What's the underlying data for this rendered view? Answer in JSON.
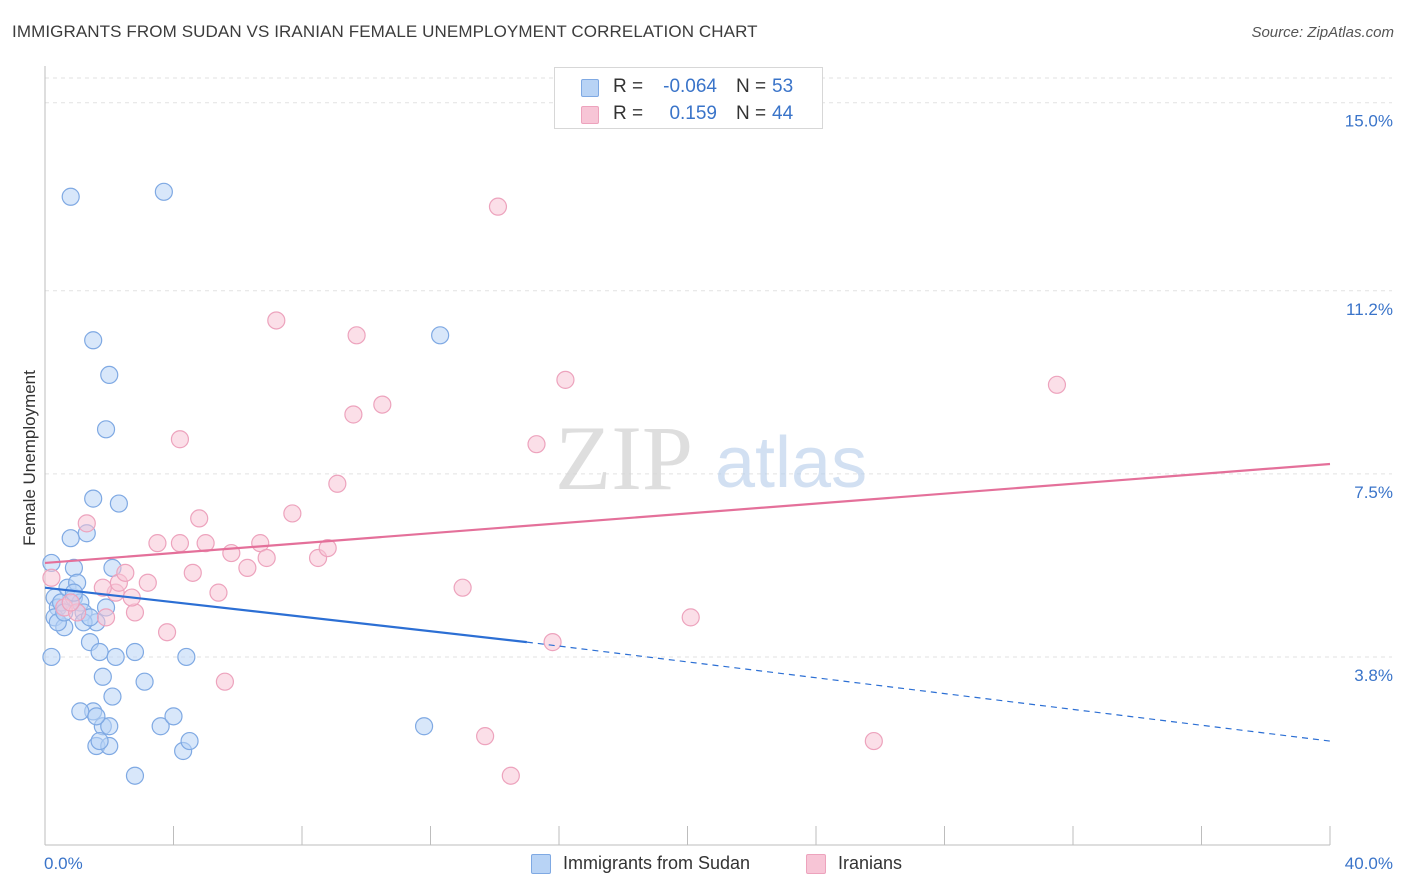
{
  "header": {
    "title": "IMMIGRANTS FROM SUDAN VS IRANIAN FEMALE UNEMPLOYMENT CORRELATION CHART",
    "source": "Source: ZipAtlas.com"
  },
  "watermark": {
    "zip": "ZIP",
    "atlas": "atlas"
  },
  "legend_top": {
    "rows": [
      {
        "r_label": "R =",
        "r_value": "-0.064",
        "n_label": "N =",
        "n_value": "53"
      },
      {
        "r_label": "R =",
        "r_value": "0.159",
        "n_label": "N =",
        "n_value": "44"
      }
    ]
  },
  "legend_bottom": {
    "items": [
      {
        "label": "Immigrants from Sudan"
      },
      {
        "label": "Iranians"
      }
    ]
  },
  "colors": {
    "blue_fill": "#b8d3f5",
    "blue_stroke": "#7fa9e3",
    "blue_line": "#2c6fd4",
    "pink_fill": "#f7c5d6",
    "pink_stroke": "#eda3bd",
    "pink_line": "#e4709a",
    "axis_text": "#3a74c9",
    "grid": "#e2e2e2"
  },
  "chart_data": {
    "type": "scatter",
    "title": "IMMIGRANTS FROM SUDAN VS IRANIAN FEMALE UNEMPLOYMENT CORRELATION CHART",
    "xlabel": "",
    "ylabel": "Female Unemployment",
    "xlim": [
      0,
      40
    ],
    "ylim": [
      0,
      15.5
    ],
    "x_tick_labels": [
      "0.0%",
      "40.0%"
    ],
    "y_ticks": [
      3.8,
      7.5,
      11.2,
      15.0
    ],
    "y_tick_labels": [
      "3.8%",
      "7.5%",
      "11.2%",
      "15.0%"
    ],
    "grid": true,
    "legend_position": "top-center",
    "series": [
      {
        "name": "Immigrants from Sudan",
        "points": [
          [
            0.2,
            5.7
          ],
          [
            0.3,
            5.0
          ],
          [
            0.4,
            4.8
          ],
          [
            0.3,
            4.6
          ],
          [
            0.5,
            4.9
          ],
          [
            0.6,
            4.4
          ],
          [
            0.7,
            5.2
          ],
          [
            0.8,
            6.2
          ],
          [
            0.9,
            5.0
          ],
          [
            0.8,
            13.1
          ],
          [
            0.9,
            5.6
          ],
          [
            1.0,
            5.3
          ],
          [
            1.1,
            4.9
          ],
          [
            1.2,
            4.7
          ],
          [
            1.3,
            6.3
          ],
          [
            1.4,
            4.1
          ],
          [
            1.5,
            7.0
          ],
          [
            1.5,
            10.2
          ],
          [
            1.6,
            4.5
          ],
          [
            1.7,
            3.9
          ],
          [
            1.8,
            3.4
          ],
          [
            1.9,
            8.4
          ],
          [
            2.0,
            9.5
          ],
          [
            2.1,
            5.6
          ],
          [
            2.2,
            3.8
          ],
          [
            1.5,
            2.7
          ],
          [
            1.8,
            2.4
          ],
          [
            2.0,
            2.4
          ],
          [
            2.3,
            6.9
          ],
          [
            1.6,
            2.0
          ],
          [
            2.0,
            2.0
          ],
          [
            2.1,
            3.0
          ],
          [
            2.8,
            3.9
          ],
          [
            3.1,
            3.3
          ],
          [
            3.6,
            2.4
          ],
          [
            2.8,
            1.4
          ],
          [
            3.7,
            13.2
          ],
          [
            4.4,
            3.8
          ],
          [
            4.3,
            1.9
          ],
          [
            4.5,
            2.1
          ],
          [
            4.0,
            2.6
          ],
          [
            1.1,
            2.7
          ],
          [
            1.6,
            2.6
          ],
          [
            1.7,
            2.1
          ],
          [
            0.2,
            3.8
          ],
          [
            0.4,
            4.5
          ],
          [
            0.6,
            4.7
          ],
          [
            1.2,
            4.5
          ],
          [
            1.4,
            4.6
          ],
          [
            0.9,
            5.1
          ],
          [
            1.9,
            4.8
          ],
          [
            12.3,
            10.3
          ],
          [
            11.8,
            2.4
          ]
        ],
        "trend_solid": [
          [
            0.0,
            5.2
          ],
          [
            15.0,
            4.1
          ]
        ],
        "trend_dashed": [
          [
            15.0,
            4.1
          ],
          [
            40.0,
            2.1
          ]
        ]
      },
      {
        "name": "Iranians",
        "points": [
          [
            0.2,
            5.4
          ],
          [
            0.6,
            4.8
          ],
          [
            1.0,
            4.7
          ],
          [
            1.3,
            6.5
          ],
          [
            1.9,
            4.6
          ],
          [
            2.2,
            5.1
          ],
          [
            2.3,
            5.3
          ],
          [
            2.5,
            5.5
          ],
          [
            2.8,
            4.7
          ],
          [
            3.2,
            5.3
          ],
          [
            3.5,
            6.1
          ],
          [
            3.8,
            4.3
          ],
          [
            4.2,
            8.2
          ],
          [
            4.2,
            6.1
          ],
          [
            4.6,
            5.5
          ],
          [
            4.8,
            6.6
          ],
          [
            5.0,
            6.1
          ],
          [
            5.4,
            5.1
          ],
          [
            5.6,
            3.3
          ],
          [
            5.8,
            5.9
          ],
          [
            6.3,
            5.6
          ],
          [
            6.7,
            6.1
          ],
          [
            6.9,
            5.8
          ],
          [
            7.2,
            10.6
          ],
          [
            7.7,
            6.7
          ],
          [
            8.5,
            5.8
          ],
          [
            8.8,
            6.0
          ],
          [
            9.1,
            7.3
          ],
          [
            9.6,
            8.7
          ],
          [
            9.7,
            10.3
          ],
          [
            10.5,
            8.9
          ],
          [
            13.0,
            5.2
          ],
          [
            13.7,
            2.2
          ],
          [
            14.1,
            12.9
          ],
          [
            14.5,
            1.4
          ],
          [
            15.3,
            8.1
          ],
          [
            15.8,
            4.1
          ],
          [
            16.2,
            9.4
          ],
          [
            20.1,
            4.6
          ],
          [
            25.8,
            2.1
          ],
          [
            31.5,
            9.3
          ],
          [
            0.8,
            4.9
          ],
          [
            1.8,
            5.2
          ],
          [
            2.7,
            5.0
          ]
        ],
        "trend_solid": [
          [
            0.0,
            5.7
          ],
          [
            40.0,
            7.7
          ]
        ]
      }
    ]
  }
}
